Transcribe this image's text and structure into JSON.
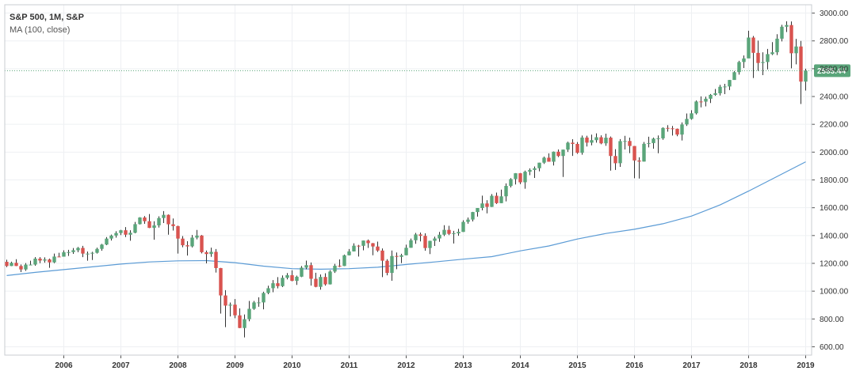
{
  "legend": {
    "title": "S&P 500, 1M, S&P",
    "indicator": "MA (100, close)"
  },
  "colors": {
    "up": "#5aa57a",
    "down": "#d9534f",
    "ma_line": "#5b9bd5",
    "last_price_line": "#5aa57a",
    "grid": "#eef0f3",
    "axis": "#555555"
  },
  "chart_data": {
    "type": "candlestick",
    "ylim": [
      540,
      3060
    ],
    "y_ticks": [
      "600.00",
      "800.00",
      "1000.00",
      "1200.00",
      "1400.00",
      "1600.00",
      "1800.00",
      "2000.00",
      "2200.00",
      "2400.00",
      "2600.00",
      "2800.00",
      "3000.00"
    ],
    "x_ticks": [
      "2006",
      "2007",
      "2008",
      "2009",
      "2010",
      "2011",
      "2012",
      "2013",
      "2014",
      "2015",
      "2016",
      "2017",
      "2018",
      "2019"
    ],
    "last_price": "2585.44",
    "grid": true,
    "series": [
      {
        "name": "MA (100, close)",
        "type": "line",
        "x": [
          "2005-01",
          "2005-07",
          "2006-01",
          "2006-07",
          "2007-01",
          "2007-07",
          "2008-01",
          "2008-07",
          "2009-01",
          "2009-07",
          "2010-01",
          "2010-07",
          "2011-01",
          "2011-07",
          "2012-01",
          "2012-07",
          "2013-01",
          "2013-07",
          "2014-01",
          "2014-07",
          "2015-01",
          "2015-07",
          "2016-01",
          "2016-07",
          "2017-01",
          "2017-07",
          "2018-01",
          "2018-07",
          "2019-01"
        ],
        "y": [
          1112,
          1135,
          1155,
          1175,
          1195,
          1210,
          1218,
          1220,
          1205,
          1180,
          1162,
          1158,
          1162,
          1172,
          1192,
          1210,
          1230,
          1248,
          1290,
          1325,
          1375,
          1415,
          1445,
          1485,
          1540,
          1620,
          1720,
          1825,
          1930
        ]
      }
    ],
    "candles": [
      [
        "2005-01",
        1211,
        1226,
        1173,
        1181
      ],
      [
        "2005-02",
        1181,
        1212,
        1180,
        1204
      ],
      [
        "2005-03",
        1204,
        1230,
        1180,
        1181
      ],
      [
        "2005-04",
        1181,
        1192,
        1137,
        1156
      ],
      [
        "2005-05",
        1156,
        1202,
        1146,
        1191
      ],
      [
        "2005-06",
        1191,
        1219,
        1188,
        1191
      ],
      [
        "2005-07",
        1191,
        1245,
        1183,
        1234
      ],
      [
        "2005-08",
        1234,
        1245,
        1201,
        1220
      ],
      [
        "2005-09",
        1220,
        1243,
        1205,
        1228
      ],
      [
        "2005-10",
        1228,
        1234,
        1168,
        1207
      ],
      [
        "2005-11",
        1207,
        1270,
        1201,
        1249
      ],
      [
        "2005-12",
        1249,
        1276,
        1246,
        1248
      ],
      [
        "2006-01",
        1248,
        1294,
        1248,
        1280
      ],
      [
        "2006-02",
        1280,
        1297,
        1253,
        1281
      ],
      [
        "2006-03",
        1281,
        1310,
        1268,
        1294
      ],
      [
        "2006-04",
        1294,
        1318,
        1280,
        1311
      ],
      [
        "2006-05",
        1311,
        1326,
        1245,
        1270
      ],
      [
        "2006-06",
        1270,
        1285,
        1219,
        1270
      ],
      [
        "2006-07",
        1270,
        1283,
        1224,
        1276
      ],
      [
        "2006-08",
        1276,
        1313,
        1270,
        1304
      ],
      [
        "2006-09",
        1304,
        1340,
        1291,
        1335
      ],
      [
        "2006-10",
        1335,
        1389,
        1331,
        1378
      ],
      [
        "2006-11",
        1378,
        1407,
        1364,
        1400
      ],
      [
        "2006-12",
        1400,
        1431,
        1385,
        1418
      ],
      [
        "2007-01",
        1418,
        1441,
        1403,
        1438
      ],
      [
        "2007-02",
        1438,
        1461,
        1389,
        1406
      ],
      [
        "2007-03",
        1406,
        1438,
        1363,
        1420
      ],
      [
        "2007-04",
        1420,
        1498,
        1416,
        1482
      ],
      [
        "2007-05",
        1482,
        1532,
        1479,
        1530
      ],
      [
        "2007-06",
        1530,
        1540,
        1484,
        1503
      ],
      [
        "2007-07",
        1503,
        1555,
        1454,
        1455
      ],
      [
        "2007-08",
        1455,
        1503,
        1370,
        1473
      ],
      [
        "2007-09",
        1473,
        1538,
        1457,
        1526
      ],
      [
        "2007-10",
        1526,
        1576,
        1490,
        1549
      ],
      [
        "2007-11",
        1549,
        1552,
        1406,
        1481
      ],
      [
        "2007-12",
        1481,
        1523,
        1436,
        1468
      ],
      [
        "2008-01",
        1468,
        1471,
        1270,
        1378
      ],
      [
        "2008-02",
        1378,
        1396,
        1316,
        1330
      ],
      [
        "2008-03",
        1330,
        1359,
        1256,
        1322
      ],
      [
        "2008-04",
        1322,
        1404,
        1314,
        1385
      ],
      [
        "2008-05",
        1385,
        1440,
        1373,
        1400
      ],
      [
        "2008-06",
        1400,
        1404,
        1272,
        1280
      ],
      [
        "2008-07",
        1280,
        1292,
        1200,
        1267
      ],
      [
        "2008-08",
        1267,
        1313,
        1247,
        1283
      ],
      [
        "2008-09",
        1283,
        1303,
        1134,
        1166
      ],
      [
        "2008-10",
        1166,
        1167,
        839,
        969
      ],
      [
        "2008-11",
        969,
        1007,
        741,
        896
      ],
      [
        "2008-12",
        896,
        918,
        818,
        903
      ],
      [
        "2009-01",
        903,
        943,
        805,
        826
      ],
      [
        "2009-02",
        826,
        876,
        734,
        735
      ],
      [
        "2009-03",
        735,
        832,
        667,
        798
      ],
      [
        "2009-04",
        798,
        930,
        783,
        873
      ],
      [
        "2009-05",
        873,
        930,
        866,
        919
      ],
      [
        "2009-06",
        919,
        956,
        888,
        919
      ],
      [
        "2009-07",
        919,
        996,
        869,
        987
      ],
      [
        "2009-08",
        987,
        1039,
        978,
        1021
      ],
      [
        "2009-09",
        1021,
        1080,
        992,
        1057
      ],
      [
        "2009-10",
        1057,
        1101,
        1020,
        1036
      ],
      [
        "2009-11",
        1036,
        1113,
        1029,
        1096
      ],
      [
        "2009-12",
        1096,
        1130,
        1085,
        1115
      ],
      [
        "2010-01",
        1115,
        1150,
        1071,
        1074
      ],
      [
        "2010-02",
        1074,
        1112,
        1045,
        1104
      ],
      [
        "2010-03",
        1104,
        1181,
        1101,
        1169
      ],
      [
        "2010-04",
        1169,
        1220,
        1157,
        1187
      ],
      [
        "2010-05",
        1187,
        1206,
        1040,
        1089
      ],
      [
        "2010-06",
        1089,
        1132,
        1028,
        1031
      ],
      [
        "2010-07",
        1031,
        1120,
        1011,
        1102
      ],
      [
        "2010-08",
        1102,
        1129,
        1040,
        1049
      ],
      [
        "2010-09",
        1049,
        1151,
        1048,
        1141
      ],
      [
        "2010-10",
        1141,
        1196,
        1131,
        1183
      ],
      [
        "2010-11",
        1183,
        1228,
        1173,
        1181
      ],
      [
        "2010-12",
        1181,
        1263,
        1180,
        1258
      ],
      [
        "2011-01",
        1258,
        1303,
        1257,
        1286
      ],
      [
        "2011-02",
        1286,
        1344,
        1285,
        1327
      ],
      [
        "2011-03",
        1327,
        1333,
        1249,
        1326
      ],
      [
        "2011-04",
        1326,
        1364,
        1294,
        1364
      ],
      [
        "2011-05",
        1364,
        1371,
        1311,
        1345
      ],
      [
        "2011-06",
        1345,
        1346,
        1258,
        1321
      ],
      [
        "2011-07",
        1321,
        1356,
        1282,
        1292
      ],
      [
        "2011-08",
        1292,
        1307,
        1101,
        1219
      ],
      [
        "2011-09",
        1219,
        1230,
        1114,
        1131
      ],
      [
        "2011-10",
        1131,
        1292,
        1075,
        1253
      ],
      [
        "2011-11",
        1253,
        1278,
        1158,
        1247
      ],
      [
        "2011-12",
        1247,
        1269,
        1202,
        1258
      ],
      [
        "2012-01",
        1258,
        1334,
        1258,
        1312
      ],
      [
        "2012-02",
        1312,
        1378,
        1312,
        1366
      ],
      [
        "2012-03",
        1366,
        1419,
        1341,
        1408
      ],
      [
        "2012-04",
        1408,
        1422,
        1358,
        1398
      ],
      [
        "2012-05",
        1398,
        1416,
        1291,
        1310
      ],
      [
        "2012-06",
        1310,
        1363,
        1267,
        1362
      ],
      [
        "2012-07",
        1362,
        1392,
        1325,
        1379
      ],
      [
        "2012-08",
        1379,
        1426,
        1355,
        1406
      ],
      [
        "2012-09",
        1406,
        1474,
        1396,
        1441
      ],
      [
        "2012-10",
        1441,
        1470,
        1403,
        1412
      ],
      [
        "2012-11",
        1412,
        1434,
        1343,
        1416
      ],
      [
        "2012-12",
        1416,
        1448,
        1398,
        1426
      ],
      [
        "2013-01",
        1426,
        1510,
        1426,
        1498
      ],
      [
        "2013-02",
        1498,
        1530,
        1485,
        1515
      ],
      [
        "2013-03",
        1515,
        1570,
        1501,
        1569
      ],
      [
        "2013-04",
        1569,
        1598,
        1536,
        1598
      ],
      [
        "2013-05",
        1598,
        1687,
        1581,
        1631
      ],
      [
        "2013-06",
        1631,
        1654,
        1560,
        1606
      ],
      [
        "2013-07",
        1606,
        1698,
        1605,
        1686
      ],
      [
        "2013-08",
        1686,
        1709,
        1627,
        1633
      ],
      [
        "2013-09",
        1633,
        1730,
        1633,
        1682
      ],
      [
        "2013-10",
        1682,
        1775,
        1646,
        1757
      ],
      [
        "2013-11",
        1757,
        1813,
        1746,
        1806
      ],
      [
        "2013-12",
        1806,
        1849,
        1767,
        1848
      ],
      [
        "2014-01",
        1848,
        1850,
        1770,
        1783
      ],
      [
        "2014-02",
        1783,
        1867,
        1737,
        1859
      ],
      [
        "2014-03",
        1859,
        1883,
        1834,
        1872
      ],
      [
        "2014-04",
        1872,
        1897,
        1814,
        1884
      ],
      [
        "2014-05",
        1884,
        1924,
        1862,
        1924
      ],
      [
        "2014-06",
        1924,
        1968,
        1915,
        1960
      ],
      [
        "2014-07",
        1960,
        1991,
        1931,
        1931
      ],
      [
        "2014-08",
        1931,
        2005,
        1904,
        2003
      ],
      [
        "2014-09",
        2003,
        2019,
        1964,
        1972
      ],
      [
        "2014-10",
        1972,
        2018,
        1821,
        2018
      ],
      [
        "2014-11",
        2018,
        2075,
        2001,
        2068
      ],
      [
        "2014-12",
        2068,
        2093,
        1973,
        2059
      ],
      [
        "2015-01",
        2059,
        2072,
        1988,
        1995
      ],
      [
        "2015-02",
        1995,
        2119,
        1981,
        2105
      ],
      [
        "2015-03",
        2105,
        2118,
        2040,
        2068
      ],
      [
        "2015-04",
        2068,
        2126,
        2049,
        2086
      ],
      [
        "2015-05",
        2086,
        2135,
        2068,
        2107
      ],
      [
        "2015-06",
        2107,
        2121,
        2057,
        2063
      ],
      [
        "2015-07",
        2063,
        2133,
        2045,
        2104
      ],
      [
        "2015-08",
        2104,
        2112,
        1867,
        1972
      ],
      [
        "2015-09",
        1972,
        2021,
        1872,
        1920
      ],
      [
        "2015-10",
        1920,
        2094,
        1894,
        2079
      ],
      [
        "2015-11",
        2079,
        2117,
        2019,
        2080
      ],
      [
        "2015-12",
        2080,
        2104,
        1993,
        2044
      ],
      [
        "2016-01",
        2044,
        2044,
        1812,
        1940
      ],
      [
        "2016-02",
        1940,
        1963,
        1810,
        1932
      ],
      [
        "2016-03",
        1932,
        2073,
        1932,
        2060
      ],
      [
        "2016-04",
        2060,
        2111,
        2034,
        2065
      ],
      [
        "2016-05",
        2065,
        2104,
        2025,
        2097
      ],
      [
        "2016-06",
        2097,
        2120,
        1992,
        2099
      ],
      [
        "2016-07",
        2099,
        2178,
        2089,
        2174
      ],
      [
        "2016-08",
        2174,
        2194,
        2147,
        2171
      ],
      [
        "2016-09",
        2171,
        2188,
        2119,
        2168
      ],
      [
        "2016-10",
        2168,
        2170,
        2114,
        2126
      ],
      [
        "2016-11",
        2126,
        2214,
        2084,
        2199
      ],
      [
        "2016-12",
        2199,
        2278,
        2188,
        2239
      ],
      [
        "2017-01",
        2239,
        2301,
        2233,
        2279
      ],
      [
        "2017-02",
        2279,
        2372,
        2271,
        2364
      ],
      [
        "2017-03",
        2364,
        2401,
        2322,
        2363
      ],
      [
        "2017-04",
        2363,
        2399,
        2329,
        2384
      ],
      [
        "2017-05",
        2384,
        2418,
        2353,
        2412
      ],
      [
        "2017-06",
        2412,
        2454,
        2405,
        2423
      ],
      [
        "2017-07",
        2423,
        2484,
        2407,
        2470
      ],
      [
        "2017-08",
        2470,
        2491,
        2417,
        2472
      ],
      [
        "2017-09",
        2472,
        2519,
        2446,
        2519
      ],
      [
        "2017-10",
        2519,
        2582,
        2520,
        2575
      ],
      [
        "2017-11",
        2575,
        2657,
        2557,
        2648
      ],
      [
        "2017-12",
        2648,
        2695,
        2605,
        2674
      ],
      [
        "2018-01",
        2674,
        2873,
        2682,
        2824
      ],
      [
        "2018-02",
        2824,
        2835,
        2533,
        2714
      ],
      [
        "2018-03",
        2714,
        2802,
        2585,
        2641
      ],
      [
        "2018-04",
        2641,
        2718,
        2554,
        2648
      ],
      [
        "2018-05",
        2648,
        2742,
        2595,
        2705
      ],
      [
        "2018-06",
        2705,
        2791,
        2698,
        2718
      ],
      [
        "2018-07",
        2718,
        2848,
        2698,
        2816
      ],
      [
        "2018-08",
        2816,
        2916,
        2796,
        2902
      ],
      [
        "2018-09",
        2902,
        2941,
        2864,
        2914
      ],
      [
        "2018-10",
        2914,
        2940,
        2603,
        2711
      ],
      [
        "2018-11",
        2711,
        2815,
        2631,
        2760
      ],
      [
        "2018-12",
        2760,
        2800,
        2346,
        2507
      ],
      [
        "2019-01",
        2507,
        2600,
        2443,
        2585
      ]
    ]
  }
}
